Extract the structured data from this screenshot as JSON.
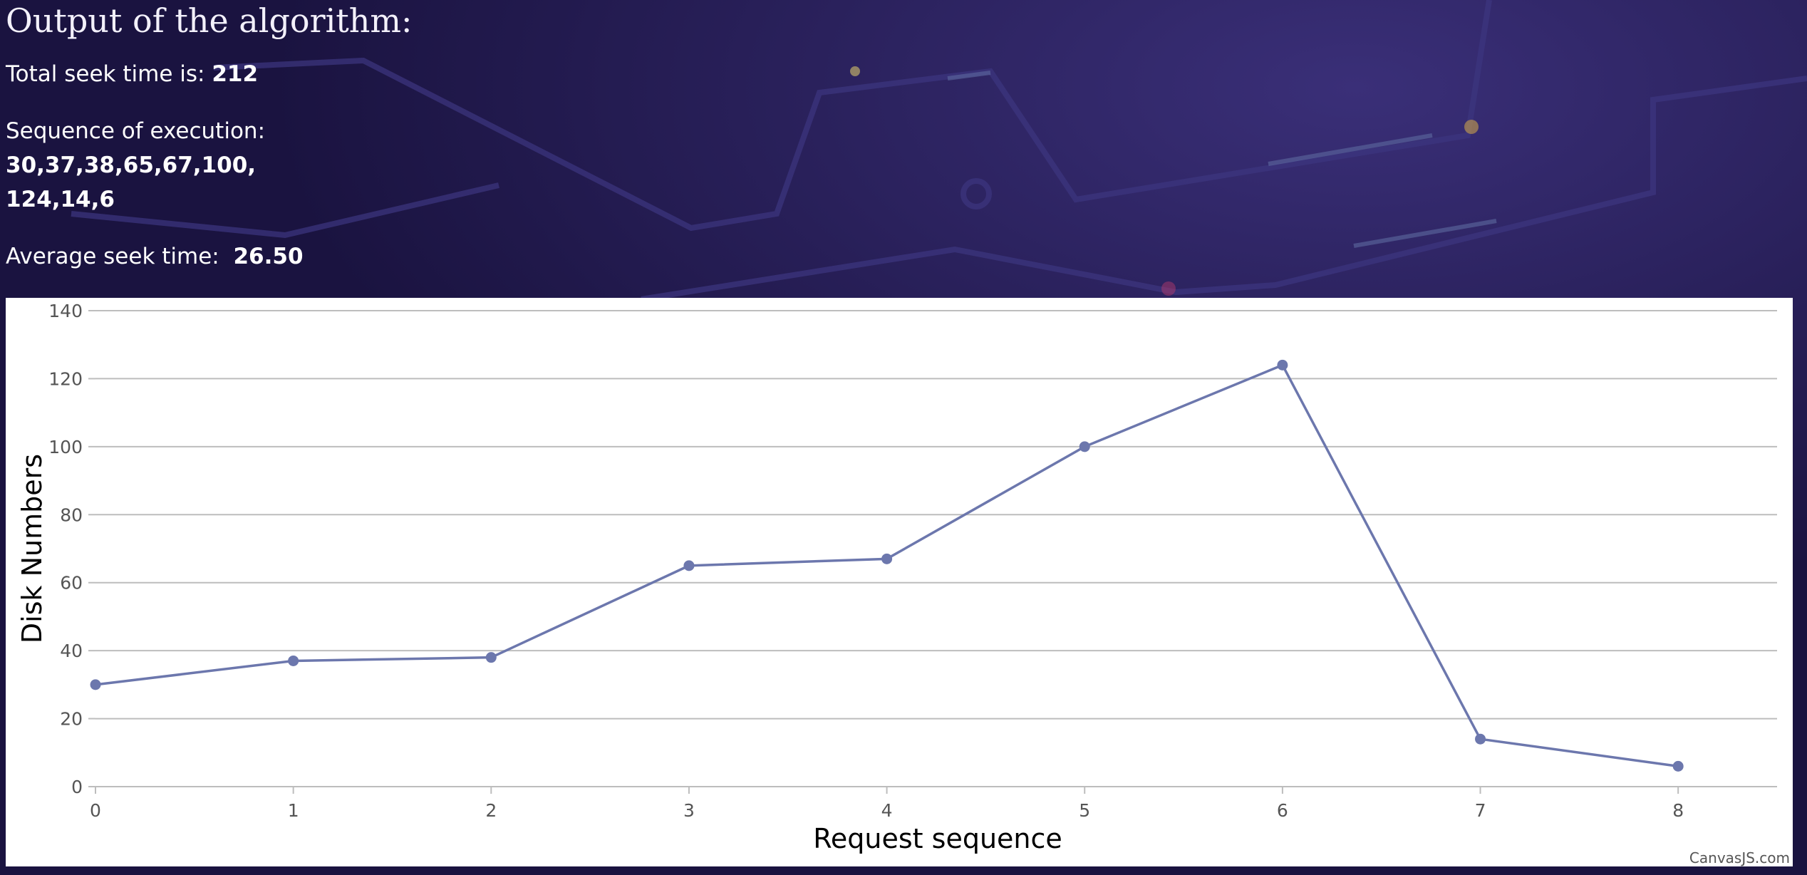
{
  "page": {
    "title": "Output of the algorithm:",
    "total_seek_label": "Total seek time is:",
    "total_seek_value": "212",
    "sequence_label": "Sequence of execution:",
    "sequence_line1": "30,37,38,65,67,100,",
    "sequence_line2": "124,14,6",
    "average_label": "Average seek time:",
    "average_value": "26.50",
    "credit": "CanvasJS.com"
  },
  "chart_data": {
    "type": "line",
    "x": [
      0,
      1,
      2,
      3,
      4,
      5,
      6,
      7,
      8
    ],
    "series": [
      {
        "values": [
          30,
          37,
          38,
          65,
          67,
          100,
          124,
          14,
          6
        ]
      }
    ],
    "xlabel": "Request sequence",
    "ylabel": "Disk Numbers",
    "xlim": [
      0,
      8.5
    ],
    "ylim": [
      0,
      140
    ],
    "yticks": [
      0,
      20,
      40,
      60,
      80,
      100,
      120,
      140
    ],
    "xticks": [
      0,
      1,
      2,
      3,
      4,
      5,
      6,
      7,
      8
    ],
    "grid": "horizontal",
    "line_color": "#6c77ad",
    "marker_color": "#6c77ad"
  },
  "colors": {
    "background": "#1d1643",
    "grid": "#bdbdbd",
    "tick_text": "#555555",
    "axis_title": "#000000"
  }
}
